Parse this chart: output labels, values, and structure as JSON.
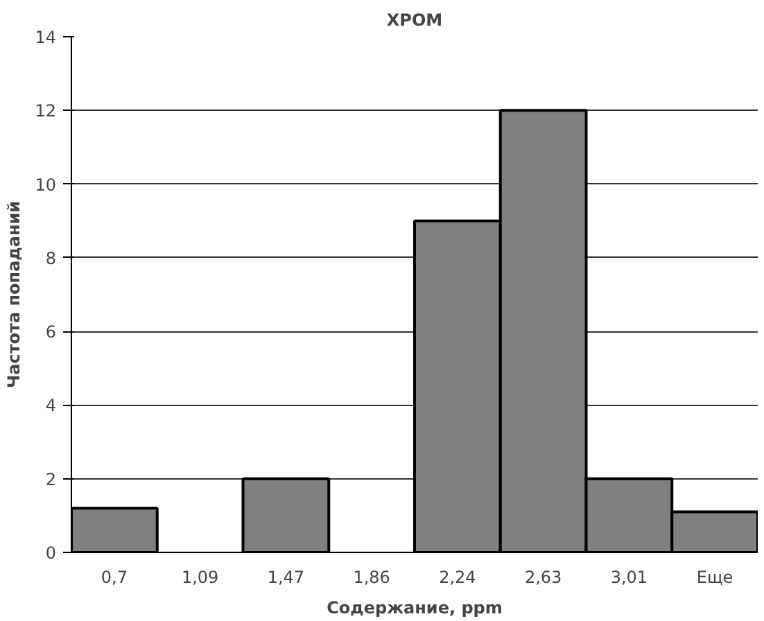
{
  "chart_data": {
    "type": "bar",
    "title": "ХРОМ",
    "xlabel": "Содержание, ppm",
    "ylabel": "Частота попаданий",
    "categories": [
      "0,7",
      "1,09",
      "1,47",
      "1,86",
      "2,24",
      "2,63",
      "3,01",
      "Еще"
    ],
    "values": [
      1.2,
      0,
      2,
      0,
      9,
      12,
      2,
      1.1
    ],
    "color": "#808080",
    "ylim": [
      0,
      14
    ],
    "yticks": [
      0,
      2,
      4,
      6,
      8,
      10,
      12,
      14
    ],
    "grid": "y"
  }
}
